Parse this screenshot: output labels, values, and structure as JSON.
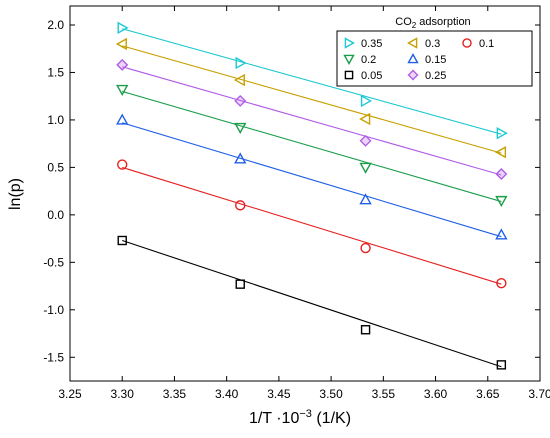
{
  "chart_data": {
    "type": "scatter",
    "xlabel_main": "1/T ·10",
    "xlabel_sup": "−3",
    "xlabel_unit": " (1/K)",
    "ylabel": "ln(p)",
    "xlim": [
      3.25,
      3.7
    ],
    "ylim": [
      -1.75,
      2.2
    ],
    "xticks": [
      3.25,
      3.3,
      3.35,
      3.4,
      3.45,
      3.5,
      3.55,
      3.6,
      3.65,
      3.7
    ],
    "xtick_labels": [
      "3.25",
      "3.30",
      "3.35",
      "3.40",
      "3.45",
      "3.50",
      "3.55",
      "3.60",
      "3.65",
      "3.70"
    ],
    "yticks": [
      -1.5,
      -1.0,
      -0.5,
      0.0,
      0.5,
      1.0,
      1.5,
      2.0
    ],
    "ytick_labels": [
      "-1.5",
      "-1.0",
      "-0.5",
      "0.0",
      "0.5",
      "1.0",
      "1.5",
      "2.0"
    ],
    "legend": {
      "title_main": "CO",
      "title_sub": "2",
      "title_rest": " adsorption",
      "placement": "top-right"
    },
    "x": [
      3.3,
      3.413,
      3.533,
      3.663
    ],
    "series": [
      {
        "name": "0.35",
        "marker": "triangle-right",
        "color": "#1ec8d2",
        "values": [
          1.97,
          1.6,
          1.2,
          0.86
        ],
        "fit": [
          1.96,
          0.85
        ]
      },
      {
        "name": "0.3",
        "marker": "triangle-left",
        "color": "#c8a000",
        "values": [
          1.8,
          1.42,
          1.01,
          0.66
        ],
        "fit": [
          1.78,
          0.65
        ]
      },
      {
        "name": "0.25",
        "marker": "diamond",
        "color": "#b05ce6",
        "values": [
          1.58,
          1.2,
          0.78,
          0.43
        ],
        "fit": [
          1.56,
          0.42
        ]
      },
      {
        "name": "0.2",
        "marker": "triangle-down",
        "color": "#1a9e4a",
        "values": [
          1.32,
          0.92,
          0.5,
          0.15
        ],
        "fit": [
          1.3,
          0.14
        ]
      },
      {
        "name": "0.15",
        "marker": "triangle-up",
        "color": "#2060e6",
        "values": [
          1.0,
          0.59,
          0.16,
          -0.21
        ],
        "fit": [
          0.97,
          -0.23
        ]
      },
      {
        "name": "0.1",
        "marker": "circle",
        "color": "#e62020",
        "values": [
          0.53,
          0.1,
          -0.35,
          -0.72
        ],
        "fit": [
          0.5,
          -0.73
        ]
      },
      {
        "name": "0.05",
        "marker": "square",
        "color": "#000000",
        "values": [
          -0.27,
          -0.73,
          -1.21,
          -1.58
        ],
        "fit": [
          -0.27,
          -1.6
        ]
      }
    ],
    "legend_order": [
      0,
      3,
      6,
      1,
      4,
      2,
      5
    ]
  }
}
